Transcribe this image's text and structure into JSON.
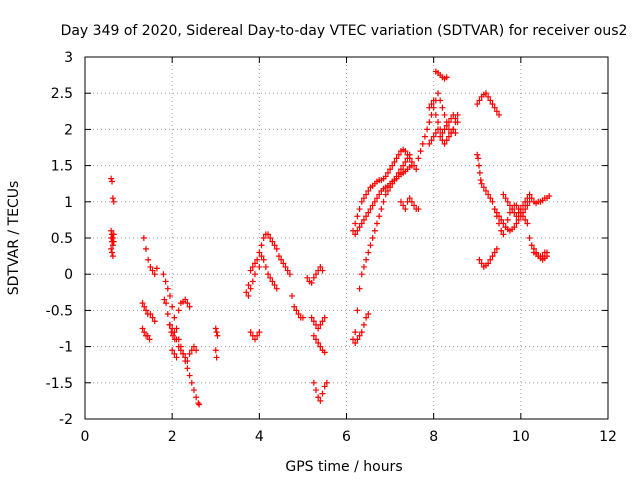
{
  "chart_data": {
    "type": "scatter",
    "title": "Day 349 of 2020, Sidereal Day-to-day VTEC variation (SDTVAR) for receiver ous2",
    "xlabel": "GPS time / hours",
    "ylabel": "SDTVAR / TECUs",
    "xlim": [
      0,
      12
    ],
    "ylim": [
      -2,
      3
    ],
    "x_ticks": [
      "0",
      "2",
      "4",
      "6",
      "8",
      "10",
      "12"
    ],
    "y_ticks": [
      "-2",
      "-1.5",
      "-1",
      "-0.5",
      "0",
      "0.5",
      "1",
      "1.5",
      "2",
      "2.5",
      "3"
    ],
    "grid": true,
    "marker": "+",
    "color": "#ff0000",
    "series": [
      {
        "name": "SDTVAR",
        "x": [
          0.6,
          0.62,
          0.64,
          0.66,
          0.6,
          0.62,
          0.64,
          0.66,
          0.6,
          0.62,
          0.64,
          0.66,
          0.6,
          0.62,
          0.64,
          1.35,
          1.4,
          1.45,
          1.5,
          1.55,
          1.6,
          1.65,
          1.32,
          1.36,
          1.4,
          1.44,
          1.5,
          1.55,
          1.6,
          1.32,
          1.36,
          1.4,
          1.44,
          1.48,
          1.8,
          1.85,
          1.9,
          1.95,
          2.0,
          2.05,
          2.1,
          2.15,
          2.2,
          2.25,
          2.3,
          2.35,
          2.4,
          2.45,
          2.5,
          2.55,
          2.6,
          2.62,
          1.82,
          1.86,
          1.9,
          1.94,
          1.98,
          2.02,
          2.06,
          1.95,
          2.0,
          2.05,
          2.1,
          2.15,
          2.2,
          2.25,
          2.3,
          2.35,
          2.4,
          2.45,
          2.5,
          2.55,
          2.0,
          2.05,
          2.1,
          2.15,
          2.2,
          2.25,
          2.3,
          2.35,
          2.4,
          3.0,
          3.02,
          3.04,
          3.0,
          3.02,
          3.7,
          3.75,
          3.8,
          3.85,
          3.9,
          3.95,
          4.0,
          4.05,
          4.1,
          4.15,
          4.2,
          4.25,
          4.3,
          4.35,
          4.4,
          4.45,
          4.5,
          4.55,
          4.6,
          4.65,
          4.7,
          3.75,
          3.8,
          3.85,
          3.9,
          4.0,
          4.05,
          4.1,
          4.15,
          4.2,
          4.25,
          4.3,
          4.35,
          4.4,
          3.8,
          3.85,
          3.9,
          3.95,
          4.0,
          4.75,
          4.8,
          4.85,
          4.9,
          4.95,
          5.0,
          5.1,
          5.15,
          5.2,
          5.25,
          5.3,
          5.35,
          5.4,
          5.45,
          5.2,
          5.25,
          5.3,
          5.35,
          5.4,
          5.45,
          5.5,
          5.25,
          5.3,
          5.35,
          5.4,
          5.45,
          5.5,
          5.25,
          5.3,
          5.35,
          5.4,
          5.45,
          5.5,
          5.55,
          6.15,
          6.2,
          6.25,
          6.3,
          6.35,
          6.4,
          6.45,
          6.5,
          6.55,
          6.6,
          6.65,
          6.7,
          6.75,
          6.8,
          6.85,
          6.9,
          6.95,
          7.0,
          7.05,
          7.1,
          7.15,
          7.2,
          7.25,
          7.3,
          7.35,
          7.4,
          7.45,
          7.5,
          7.55,
          7.6,
          6.2,
          6.25,
          6.3,
          6.35,
          6.4,
          6.45,
          6.5,
          6.55,
          6.6,
          6.65,
          6.7,
          6.75,
          6.8,
          6.85,
          6.9,
          6.95,
          7.0,
          7.05,
          7.1,
          7.15,
          7.2,
          7.25,
          7.3,
          7.35,
          7.4,
          7.45,
          7.5,
          6.15,
          6.2,
          6.25,
          6.3,
          6.35,
          6.4,
          6.45,
          6.5,
          6.55,
          6.6,
          6.65,
          6.7,
          6.75,
          6.8,
          6.85,
          6.9,
          6.95,
          7.0,
          7.05,
          7.1,
          7.15,
          7.2,
          7.25,
          7.3,
          7.35,
          7.4,
          7.45,
          6.2,
          6.25,
          6.3,
          6.35,
          6.4,
          6.45,
          6.5,
          7.25,
          7.3,
          7.35,
          7.4,
          7.45,
          7.5,
          7.55,
          7.6,
          7.65,
          7.65,
          7.7,
          7.75,
          7.8,
          7.85,
          7.9,
          7.95,
          8.0,
          8.05,
          8.1,
          8.15,
          8.2,
          8.25,
          8.3,
          8.35,
          8.4,
          8.45,
          8.5,
          8.55,
          7.9,
          7.95,
          8.0,
          8.05,
          8.1,
          8.15,
          8.2,
          8.25,
          8.3,
          8.35,
          8.4,
          8.45,
          8.5,
          8.55,
          7.9,
          7.95,
          8.0,
          8.05,
          8.1,
          8.15,
          8.2,
          8.25,
          8.3,
          8.35,
          8.4,
          8.45,
          8.5,
          8.05,
          8.1,
          8.15,
          8.2,
          8.25,
          8.3,
          9.0,
          9.05,
          9.1,
          9.15,
          9.2,
          9.25,
          9.3,
          9.35,
          9.4,
          9.45,
          9.5,
          9.0,
          9.02,
          9.04,
          9.06,
          9.08,
          9.1,
          9.15,
          9.2,
          9.25,
          9.3,
          9.35,
          9.4,
          9.45,
          9.5,
          9.55,
          9.6,
          9.65,
          9.7,
          9.75,
          9.8,
          9.85,
          9.9,
          9.95,
          10.0,
          10.05,
          10.1,
          10.15,
          10.2,
          10.25,
          10.3,
          10.35,
          10.4,
          10.45,
          10.5,
          10.55,
          10.6,
          9.05,
          9.1,
          9.15,
          9.2,
          9.25,
          9.3,
          9.35,
          9.4,
          9.45,
          9.4,
          9.45,
          9.5,
          9.55,
          9.6,
          9.65,
          9.7,
          9.75,
          9.8,
          9.85,
          9.9,
          9.95,
          10.0,
          10.05,
          10.1,
          10.15,
          10.2,
          9.6,
          9.65,
          9.7,
          9.75,
          9.8,
          9.85,
          9.9,
          9.95,
          10.0,
          10.05,
          10.1,
          10.15,
          10.2,
          10.25,
          10.3,
          10.35,
          10.4,
          10.45,
          10.5,
          10.55,
          10.6,
          10.65,
          10.3,
          10.35,
          10.4,
          10.45,
          10.5,
          10.55,
          10.6
        ],
        "y": [
          1.32,
          1.28,
          1.05,
          1.0,
          0.6,
          0.55,
          0.5,
          0.45,
          0.35,
          0.3,
          0.25,
          0.55,
          0.5,
          0.45,
          0.4,
          0.5,
          0.35,
          0.2,
          0.1,
          0.05,
          0.0,
          0.08,
          -0.4,
          -0.45,
          -0.5,
          -0.55,
          -0.55,
          -0.6,
          -0.65,
          -0.75,
          -0.8,
          -0.85,
          -0.85,
          -0.9,
          0.0,
          -0.1,
          -0.2,
          -0.3,
          -0.45,
          -0.6,
          -0.75,
          -0.9,
          -1.0,
          -1.1,
          -1.2,
          -1.3,
          -1.4,
          -1.5,
          -1.6,
          -1.7,
          -1.78,
          -1.8,
          -0.35,
          -0.4,
          -0.55,
          -0.7,
          -0.8,
          -0.85,
          -0.9,
          -0.7,
          -0.75,
          -0.8,
          -0.9,
          -1.0,
          -1.05,
          -1.1,
          -1.15,
          -1.2,
          -1.1,
          -1.05,
          -1.0,
          -1.05,
          -1.05,
          -1.1,
          -1.15,
          -0.5,
          -0.4,
          -0.38,
          -0.35,
          -0.4,
          -0.45,
          -0.75,
          -0.8,
          -0.85,
          -1.05,
          -1.15,
          -0.25,
          -0.15,
          0.05,
          0.1,
          0.15,
          0.2,
          0.3,
          0.4,
          0.5,
          0.55,
          0.55,
          0.5,
          0.45,
          0.4,
          0.35,
          0.25,
          0.2,
          0.15,
          0.1,
          0.05,
          0.0,
          -0.3,
          -0.2,
          -0.1,
          0.0,
          0.1,
          0.25,
          0.2,
          0.1,
          0.0,
          -0.05,
          -0.1,
          -0.15,
          -0.2,
          -0.8,
          -0.85,
          -0.9,
          -0.85,
          -0.8,
          -0.3,
          -0.45,
          -0.5,
          -0.55,
          -0.6,
          -0.6,
          -0.05,
          -0.1,
          -0.12,
          -0.05,
          0.0,
          0.05,
          0.1,
          0.05,
          -0.6,
          -0.65,
          -0.7,
          -0.75,
          -0.7,
          -0.65,
          -0.6,
          -0.85,
          -0.9,
          -0.95,
          -1.0,
          -1.05,
          -1.08,
          -1.5,
          -1.6,
          -1.7,
          -1.75,
          -1.65,
          -1.55,
          -1.5,
          0.6,
          0.7,
          0.8,
          0.9,
          1.0,
          1.05,
          1.1,
          1.15,
          1.2,
          1.22,
          1.25,
          1.28,
          1.3,
          1.3,
          1.32,
          1.35,
          1.4,
          1.45,
          1.5,
          1.55,
          1.6,
          1.65,
          1.7,
          1.72,
          1.7,
          1.65,
          1.6,
          1.55,
          1.5,
          1.45,
          0.55,
          0.6,
          0.65,
          0.7,
          0.75,
          0.8,
          0.85,
          0.9,
          0.95,
          1.0,
          1.05,
          1.1,
          1.15,
          1.18,
          1.2,
          1.22,
          1.25,
          1.28,
          1.3,
          1.32,
          1.35,
          1.38,
          1.4,
          1.42,
          1.45,
          1.48,
          1.5,
          -0.9,
          -0.8,
          -0.5,
          -0.2,
          0.0,
          0.1,
          0.2,
          0.3,
          0.4,
          0.5,
          0.6,
          0.7,
          0.8,
          0.9,
          1.0,
          1.1,
          1.15,
          1.2,
          1.25,
          1.3,
          1.35,
          1.4,
          1.45,
          1.5,
          1.55,
          1.6,
          1.65,
          -0.95,
          -0.9,
          -0.85,
          -0.8,
          -0.7,
          -0.6,
          -0.55,
          1.0,
          0.95,
          0.9,
          1.0,
          1.05,
          1.0,
          0.95,
          0.9,
          0.9,
          1.6,
          1.7,
          1.8,
          1.9,
          2.0,
          2.1,
          2.2,
          2.3,
          2.4,
          2.5,
          2.4,
          2.3,
          2.2,
          2.1,
          2.0,
          1.95,
          2.0,
          2.1,
          2.2,
          2.3,
          2.35,
          2.4,
          2.2,
          2.1,
          2.0,
          1.95,
          2.0,
          2.05,
          2.1,
          2.15,
          2.2,
          2.15,
          2.1,
          1.8,
          1.85,
          1.9,
          1.95,
          2.0,
          1.9,
          1.85,
          1.8,
          1.85,
          1.9,
          1.95,
          2.0,
          1.95,
          2.8,
          2.78,
          2.75,
          2.72,
          2.7,
          2.72,
          2.35,
          2.4,
          2.45,
          2.48,
          2.5,
          2.45,
          2.4,
          2.35,
          2.3,
          2.25,
          2.2,
          1.65,
          1.6,
          1.5,
          1.4,
          1.3,
          1.25,
          1.2,
          1.15,
          1.1,
          1.05,
          1.0,
          0.9,
          0.8,
          0.7,
          0.6,
          0.55,
          0.65,
          0.75,
          0.85,
          0.9,
          0.95,
          0.95,
          0.9,
          0.85,
          0.8,
          0.75,
          0.7,
          0.5,
          0.4,
          0.35,
          0.3,
          0.25,
          0.25,
          0.25,
          0.3,
          0.3,
          0.2,
          0.15,
          0.1,
          0.12,
          0.15,
          0.2,
          0.25,
          0.3,
          0.35,
          0.9,
          0.85,
          0.8,
          0.75,
          0.7,
          0.65,
          0.62,
          0.6,
          0.62,
          0.65,
          0.7,
          0.75,
          0.8,
          0.85,
          0.9,
          0.95,
          1.0,
          1.1,
          1.05,
          1.0,
          0.95,
          0.9,
          0.85,
          0.8,
          0.85,
          0.9,
          0.95,
          1.0,
          1.05,
          1.1,
          1.05,
          1.0,
          0.98,
          1.0,
          1.0,
          1.02,
          1.05,
          1.05,
          1.08,
          0.3,
          0.28,
          0.25,
          0.22,
          0.2,
          0.22,
          0.25
        ]
      }
    ]
  }
}
